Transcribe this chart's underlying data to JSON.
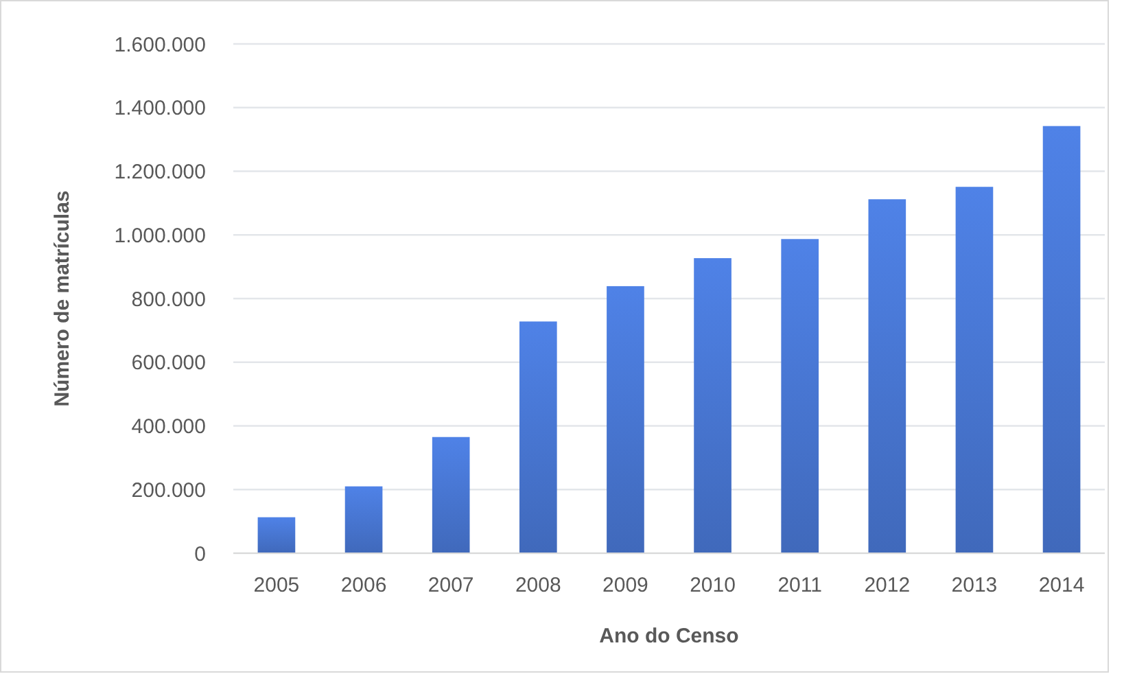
{
  "chart_data": {
    "type": "bar",
    "xlabel": "Ano do Censo",
    "ylabel": "Número de matrículas",
    "categories": [
      "2005",
      "2006",
      "2007",
      "2008",
      "2009",
      "2010",
      "2011",
      "2012",
      "2013",
      "2014"
    ],
    "values": [
      113000,
      210000,
      365000,
      728000,
      839000,
      927000,
      987000,
      1112000,
      1151000,
      1342000
    ],
    "color": "#4673cc",
    "ylim": [
      0,
      1600000
    ],
    "yticks": [
      {
        "value": 0,
        "label": "0"
      },
      {
        "value": 200000,
        "label": "200.000"
      },
      {
        "value": 400000,
        "label": "400.000"
      },
      {
        "value": 600000,
        "label": "600.000"
      },
      {
        "value": 800000,
        "label": "800.000"
      },
      {
        "value": 1000000,
        "label": "1.000.000"
      },
      {
        "value": 1200000,
        "label": "1.200.000"
      },
      {
        "value": 1400000,
        "label": "1.400.000"
      },
      {
        "value": 1600000,
        "label": "1.600.000"
      }
    ],
    "grid": "y"
  }
}
